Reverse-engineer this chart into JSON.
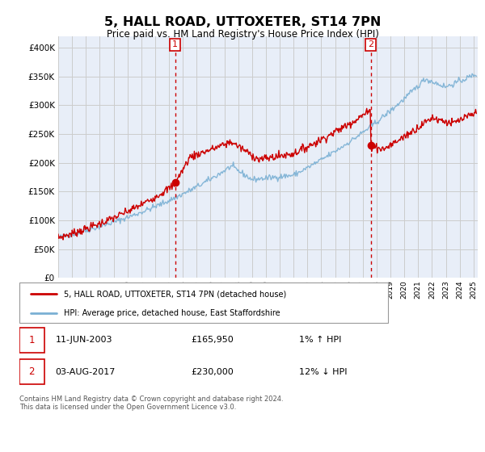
{
  "title": "5, HALL ROAD, UTTOXETER, ST14 7PN",
  "subtitle": "Price paid vs. HM Land Registry's House Price Index (HPI)",
  "ylim": [
    0,
    420000
  ],
  "yticks": [
    0,
    50000,
    100000,
    150000,
    200000,
    250000,
    300000,
    350000,
    400000
  ],
  "xlim_start": 1995,
  "xlim_end": 2025.3,
  "legend_line1": "5, HALL ROAD, UTTOXETER, ST14 7PN (detached house)",
  "legend_line2": "HPI: Average price, detached house, East Staffordshire",
  "annotation1_date": "11-JUN-2003",
  "annotation1_price": "£165,950",
  "annotation1_hpi": "1% ↑ HPI",
  "annotation1_year": 2003.44,
  "annotation1_value": 165950,
  "annotation2_date": "03-AUG-2017",
  "annotation2_price": "£230,000",
  "annotation2_hpi": "12% ↓ HPI",
  "annotation2_year": 2017.58,
  "annotation2_value": 230000,
  "footer": "Contains HM Land Registry data © Crown copyright and database right 2024.\nThis data is licensed under the Open Government Licence v3.0.",
  "red_color": "#cc0000",
  "blue_color": "#7ab0d4",
  "grid_color": "#cccccc",
  "bg_color": "#e8eef8",
  "white": "#ffffff"
}
